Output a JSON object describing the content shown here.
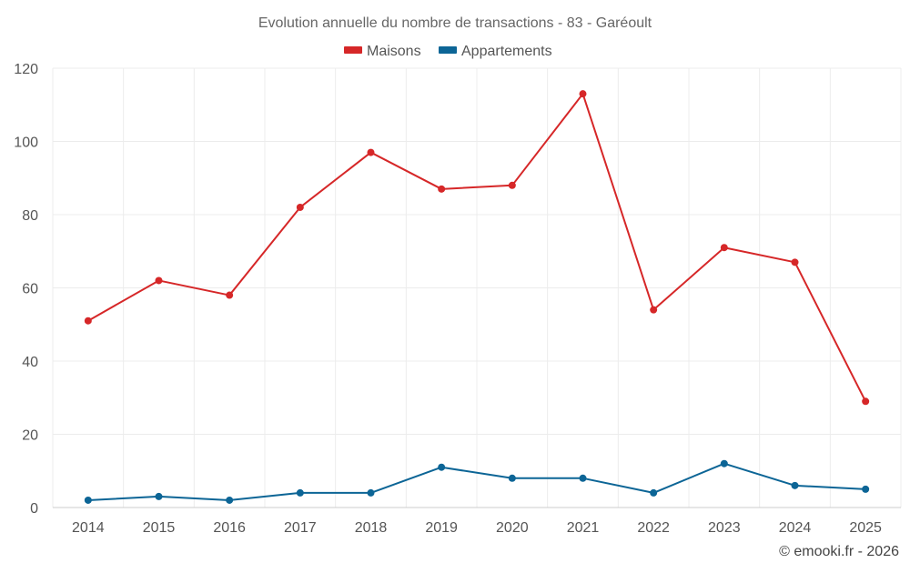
{
  "chart_data": {
    "type": "line",
    "title": "Evolution annuelle du nombre de transactions - 83 - Garéoult",
    "categories": [
      "2014",
      "2015",
      "2016",
      "2017",
      "2018",
      "2019",
      "2020",
      "2021",
      "2022",
      "2023",
      "2024",
      "2025"
    ],
    "series": [
      {
        "name": "Maisons",
        "color": "#d62728",
        "values": [
          51,
          62,
          58,
          82,
          97,
          87,
          88,
          113,
          54,
          71,
          67,
          29
        ]
      },
      {
        "name": "Appartements",
        "color": "#0c6596",
        "values": [
          2,
          3,
          2,
          4,
          4,
          11,
          8,
          8,
          4,
          12,
          6,
          5
        ]
      }
    ],
    "ylim": [
      0,
      120
    ],
    "yticks": [
      0,
      20,
      40,
      60,
      80,
      100,
      120
    ],
    "ytick_labels": [
      "0",
      "20",
      "40",
      "60",
      "80",
      "100",
      "120"
    ],
    "grid": true,
    "legend_position": "top-center",
    "xlabel": "",
    "ylabel": ""
  },
  "credit": "© emooki.fr - 2026"
}
